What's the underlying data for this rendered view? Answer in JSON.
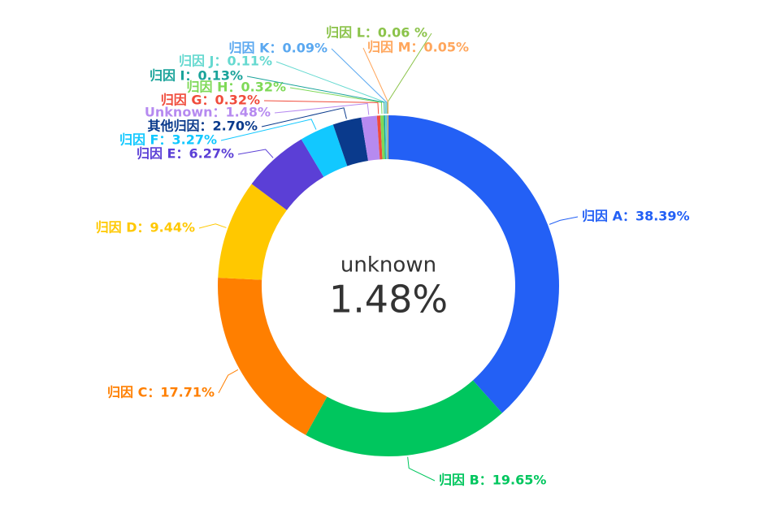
{
  "chart_data": {
    "type": "pie",
    "values": [
      38.39,
      19.65,
      17.71,
      9.44,
      6.27,
      3.27,
      2.7,
      1.48,
      0.32,
      0.32,
      0.13,
      0.11,
      0.09,
      0.06,
      0.05
    ],
    "value_labels": [
      "归因 A：38.39%",
      "归因 B：19.65%",
      "归因 C：17.71%",
      "归因 D：9.44%",
      "归因 E：6.27%",
      "归因 F：3.27%",
      "其他归因：2.70%",
      "Unknown：1.48%",
      "归因 G：0.32%",
      "归因 H：0.32%",
      "归因 I：0.13%",
      "归因 J：0.11%",
      "归因 K：0.09%",
      "归因 L：0.06 %",
      "归因 M：0.05%"
    ],
    "colors": [
      "#2360f5",
      "#00c65e",
      "#ff7f00",
      "#ffc800",
      "#5b3fd6",
      "#12c8ff",
      "#0a3a8c",
      "#b68af0",
      "#f04c3c",
      "#7ed957",
      "#1aa39a",
      "#66d9d0",
      "#5aa8f0",
      "#8bc34a",
      "#ffa65c"
    ],
    "center": {
      "label": "unknown",
      "value_label": "1.48%"
    }
  }
}
